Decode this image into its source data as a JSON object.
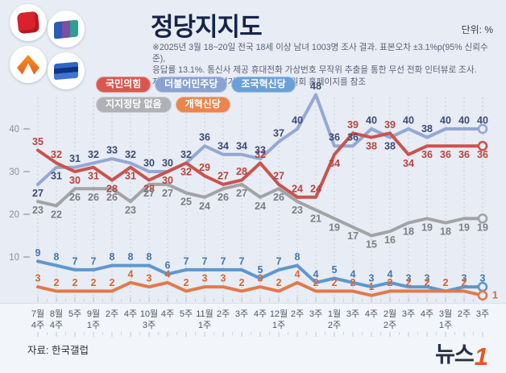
{
  "header": {
    "title": "정당지지도",
    "unit_label": "단위: %",
    "notes": [
      "※2025년 3월 18~20일 전국 18세 이상 남녀 1003명 조사 결과. 표본오차 ±3.1%p(95% 신뢰수준),",
      "응답률 13.1%. 통신사 제공 휴대전화 가상번호 무작위 추출을 통한 무선 전화 인터뷰로 조사.",
      "자세한 내용은 중앙선거여론조사심의위원회 홈페이지를 참조"
    ],
    "logo_icons": [
      "red-cube-party-logo",
      "tricolor-flag-party-logo",
      "orange-chevron-party-logo",
      "blue-flag-party-logo"
    ]
  },
  "legend": [
    {
      "label": "국민의힘",
      "color": "#d9574f"
    },
    {
      "label": "더불어민주당",
      "color": "#8aa2d2"
    },
    {
      "label": "조국혁신당",
      "color": "#6aa0d8"
    },
    {
      "label": "지지정당 없음",
      "color": "#b0b1b6"
    },
    {
      "label": "개혁신당",
      "color": "#e9854e"
    }
  ],
  "chart_data": {
    "type": "line",
    "title": "정당지지도",
    "unit": "%",
    "ylim": [
      0,
      50
    ],
    "yticks": [
      10,
      20,
      30,
      40
    ],
    "grid": "vertical-dashed",
    "legend_position": "top",
    "x_labels": [
      {
        "m": "7월",
        "w": "4주"
      },
      {
        "m": "8월",
        "w": "4주"
      },
      {
        "m": "",
        "w": "5주"
      },
      {
        "m": "9월",
        "w": "1주"
      },
      {
        "m": "",
        "w": "2주"
      },
      {
        "m": "",
        "w": "4주"
      },
      {
        "m": "10월",
        "w": "3주"
      },
      {
        "m": "",
        "w": "4주"
      },
      {
        "m": "",
        "w": "5주"
      },
      {
        "m": "11월",
        "w": "1주"
      },
      {
        "m": "",
        "w": "2주"
      },
      {
        "m": "",
        "w": "3주"
      },
      {
        "m": "",
        "w": "4주"
      },
      {
        "m": "12월",
        "w": "1주"
      },
      {
        "m": "",
        "w": "2주"
      },
      {
        "m": "",
        "w": "3주"
      },
      {
        "m": "1월",
        "w": "2주"
      },
      {
        "m": "",
        "w": "3주"
      },
      {
        "m": "",
        "w": "4주"
      },
      {
        "m": "2월",
        "w": "2주"
      },
      {
        "m": "",
        "w": "3주"
      },
      {
        "m": "",
        "w": "4주"
      },
      {
        "m": "3월",
        "w": "1주"
      },
      {
        "m": "",
        "w": "2주"
      },
      {
        "m": "",
        "w": "3주"
      }
    ],
    "series": [
      {
        "name": "국민의힘",
        "color": "#c9544e",
        "label_color": "#b9433e",
        "values": [
          35,
          32,
          30,
          31,
          28,
          31,
          28,
          30,
          32,
          29,
          27,
          28,
          32,
          27,
          24,
          24,
          34,
          39,
          38,
          39,
          34,
          36,
          36,
          36,
          36
        ]
      },
      {
        "name": "더불어민주당",
        "color": "#94a8d4",
        "label_color": "#3e4b74",
        "values": [
          27,
          31,
          31,
          32,
          33,
          32,
          30,
          30,
          32,
          36,
          34,
          34,
          33,
          37,
          40,
          48,
          36,
          36,
          40,
          38,
          40,
          38,
          40,
          40,
          40
        ]
      },
      {
        "name": "조국혁신당",
        "color": "#5e97ce",
        "label_color": "#4579ad",
        "values": [
          9,
          8,
          7,
          7,
          8,
          8,
          8,
          6,
          7,
          7,
          7,
          7,
          5,
          7,
          8,
          4,
          5,
          4,
          3,
          4,
          3,
          3,
          2,
          3,
          3
        ]
      },
      {
        "name": "지지정당 없음",
        "color": "#a2a3a7",
        "label_color": "#7d7e84",
        "values": [
          23,
          22,
          26,
          26,
          26,
          23,
          27,
          27,
          25,
          24,
          26,
          27,
          24,
          26,
          23,
          21,
          19,
          17,
          15,
          16,
          18,
          19,
          18,
          19,
          19
        ]
      },
      {
        "name": "개혁신당",
        "color": "#e17a4a",
        "label_color": "#d06a38",
        "values": [
          3,
          2,
          2,
          2,
          2,
          4,
          3,
          4,
          2,
          3,
          3,
          2,
          3,
          2,
          4,
          2,
          2,
          2,
          1,
          2,
          2,
          2,
          2,
          2,
          1
        ]
      }
    ]
  },
  "footer": {
    "source": "자료: 한국갤럽",
    "press_logo_text": "뉴스",
    "press_logo_accent": "1"
  }
}
